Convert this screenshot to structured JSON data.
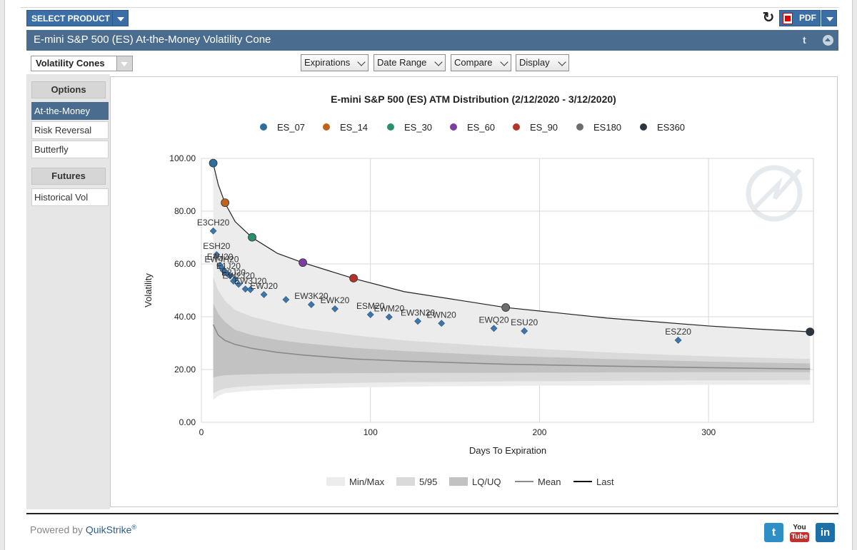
{
  "topbar": {
    "select_product": "SELECT PRODUCT",
    "pdf_label": "PDF"
  },
  "page_title": "E-mini S&P 500 (ES) At-the-Money Volatility Cone",
  "view_select": "Volatility Cones",
  "menus": [
    {
      "label": "Expirations"
    },
    {
      "label": "Date Range"
    },
    {
      "label": "Compare"
    },
    {
      "label": "Display"
    }
  ],
  "sidebar": {
    "options_header": "Options",
    "options_items": [
      {
        "label": "At-the-Money",
        "active": true
      },
      {
        "label": "Risk Reversal",
        "active": false
      },
      {
        "label": "Butterfly",
        "active": false
      }
    ],
    "futures_header": "Futures",
    "futures_items": [
      {
        "label": "Historical Vol",
        "active": false
      }
    ]
  },
  "footer": {
    "powered_by": "Powered by",
    "brand": "QuikStrike",
    "reg": "®",
    "youtube_you": "You",
    "youtube_tube": "Tube",
    "twitter": "t",
    "linkedin": "in"
  },
  "chart_data": {
    "type": "scatter",
    "title": "E-mini S&P 500 (ES) ATM Distribution (2/12/2020 - 3/12/2020)",
    "xlabel": "Days To Expiration",
    "ylabel": "Volatility",
    "xlim": [
      0,
      362
    ],
    "ylim": [
      0,
      100
    ],
    "xticks": [
      0,
      100,
      200,
      300
    ],
    "yticks": [
      "0.00",
      "20.00",
      "40.00",
      "60.00",
      "80.00",
      "100.00"
    ],
    "grid": true,
    "legend_top": [
      {
        "name": "ES_07",
        "color": "#2e6d9e"
      },
      {
        "name": "ES_14",
        "color": "#c0621c"
      },
      {
        "name": "ES_30",
        "color": "#2a8f6e"
      },
      {
        "name": "ES_60",
        "color": "#7b3ea0"
      },
      {
        "name": "ES_90",
        "color": "#b5322a"
      },
      {
        "name": "ES180",
        "color": "#6d6d6d"
      },
      {
        "name": "ES360",
        "color": "#2b3540"
      }
    ],
    "legend_bottom": [
      {
        "name": "Min/Max",
        "kind": "band",
        "color": "#ececec"
      },
      {
        "name": "5/95",
        "kind": "band",
        "color": "#dadada"
      },
      {
        "name": "LQ/UQ",
        "kind": "band",
        "color": "#c2c2c2"
      },
      {
        "name": "Mean",
        "kind": "line",
        "color": "#8a8a8a"
      },
      {
        "name": "Last",
        "kind": "line",
        "color": "#111111"
      }
    ],
    "last_curve": {
      "x": [
        7,
        10,
        14,
        20,
        30,
        45,
        60,
        75,
        90,
        120,
        150,
        180,
        210,
        240,
        270,
        300,
        330,
        360
      ],
      "y": [
        98,
        90,
        83,
        76,
        70,
        64,
        60.5,
        57.5,
        54.5,
        49.5,
        46.5,
        43.5,
        41.5,
        39.5,
        38,
        36.5,
        35.3,
        34.3
      ]
    },
    "mean_curve": {
      "x": [
        7,
        10,
        14,
        20,
        30,
        45,
        60,
        90,
        120,
        180,
        240,
        300,
        360
      ],
      "y": [
        37,
        33,
        31,
        29.5,
        28,
        26.5,
        25.5,
        24,
        23.2,
        22,
        21.3,
        20.7,
        20.2
      ]
    },
    "minmax_band": {
      "x": [
        7,
        10,
        14,
        20,
        30,
        45,
        60,
        90,
        120,
        180,
        240,
        300,
        360
      ],
      "upper": [
        98,
        90,
        83,
        76,
        70,
        64,
        60.5,
        54.5,
        49.5,
        43.5,
        39.5,
        36.5,
        34.3
      ],
      "lower": [
        8.5,
        10,
        11,
        11.5,
        12,
        12.5,
        12.8,
        13.2,
        13.5,
        13.8,
        14,
        14.2,
        14.3
      ]
    },
    "p5_95_band": {
      "x": [
        7,
        10,
        14,
        20,
        30,
        45,
        60,
        90,
        120,
        180,
        240,
        300,
        360
      ],
      "upper": [
        55,
        50,
        46,
        42.5,
        40,
        37.5,
        35.5,
        33,
        31,
        28.5,
        26.5,
        25,
        24
      ],
      "lower": [
        11,
        12,
        12.8,
        13.3,
        13.8,
        14.2,
        14.5,
        14.9,
        15.2,
        15.5,
        15.7,
        15.9,
        16
      ]
    },
    "lq_uq_band": {
      "x": [
        7,
        10,
        14,
        20,
        30,
        45,
        60,
        90,
        120,
        180,
        240,
        300,
        360
      ],
      "upper": [
        45,
        41,
        38,
        35,
        33,
        31.2,
        30,
        28.2,
        27,
        25.2,
        24,
        23,
        22.3
      ],
      "lower": [
        17,
        17.5,
        17.8,
        18,
        18.2,
        18.4,
        18.5,
        18.6,
        18.7,
        18.8,
        18.9,
        19,
        19
      ]
    },
    "benchmarks": [
      {
        "name": "ES_07",
        "x": 7,
        "y": 98.2
      },
      {
        "name": "ES_14",
        "x": 14,
        "y": 83.2
      },
      {
        "name": "ES_30",
        "x": 30,
        "y": 70.1
      },
      {
        "name": "ES_60",
        "x": 60,
        "y": 60.5
      },
      {
        "name": "ES_90",
        "x": 90,
        "y": 54.6
      },
      {
        "name": "ES180",
        "x": 180,
        "y": 43.5
      },
      {
        "name": "ES360",
        "x": 360,
        "y": 34.3
      }
    ],
    "contracts": [
      {
        "label": "E3CH20",
        "x": 7,
        "y": 72.5
      },
      {
        "label": "ESH20",
        "x": 9,
        "y": 63.5
      },
      {
        "label": "E4H20",
        "x": 11,
        "y": 59.5
      },
      {
        "label": "EW4H20",
        "x": 12,
        "y": 58.5
      },
      {
        "label": "",
        "x": 13,
        "y": 57.5
      },
      {
        "label": "",
        "x": 15,
        "y": 56.5
      },
      {
        "label": "E1J20",
        "x": 16,
        "y": 56
      },
      {
        "label": "",
        "x": 17,
        "y": 55.5
      },
      {
        "label": "E2J20",
        "x": 19,
        "y": 53.5
      },
      {
        "label": "",
        "x": 20,
        "y": 54.2
      },
      {
        "label": "EW2J20",
        "x": 22,
        "y": 52.3
      },
      {
        "label": "",
        "x": 26,
        "y": 50.5
      },
      {
        "label": "EW3J20",
        "x": 29,
        "y": 50.3
      },
      {
        "label": "EWJ20",
        "x": 37,
        "y": 48.4
      },
      {
        "label": "",
        "x": 50,
        "y": 46.5
      },
      {
        "label": "EW3K20",
        "x": 65,
        "y": 44.6
      },
      {
        "label": "EWK20",
        "x": 79,
        "y": 43
      },
      {
        "label": "ESM20",
        "x": 100,
        "y": 40.8
      },
      {
        "label": "EWM20",
        "x": 111,
        "y": 39.9
      },
      {
        "label": "EW3N20",
        "x": 128,
        "y": 38.3
      },
      {
        "label": "EWN20",
        "x": 142,
        "y": 37.5
      },
      {
        "label": "EWQ20",
        "x": 173,
        "y": 35.6
      },
      {
        "label": "ESU20",
        "x": 191,
        "y": 34.6
      },
      {
        "label": "ESZ20",
        "x": 282,
        "y": 31.1
      }
    ]
  }
}
